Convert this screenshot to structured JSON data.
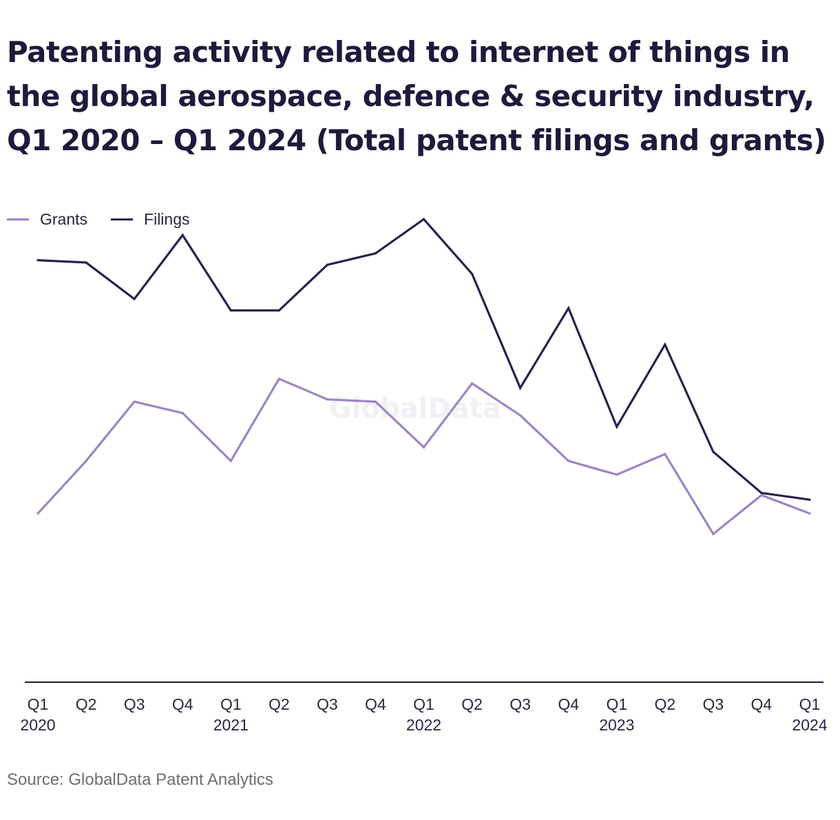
{
  "title": "Patenting activity related to internet of things in the global aerospace, defence & security industry, Q1 2020 – Q1 2024 (Total patent filings and grants)",
  "watermark": "GlobalData",
  "source": "Source: GlobalData Patent Analytics",
  "colors": {
    "grants": "#9b84c6",
    "filings": "#2b1f4e",
    "axis": "#1f1a3b"
  },
  "chart_data": {
    "type": "line",
    "title": "Patenting activity related to internet of things in the global aerospace, defence & security industry, Q1 2020 – Q1 2024 (Total patent filings and grants)",
    "xlabel": "",
    "ylabel": "",
    "grid": false,
    "legend_position": "top-left",
    "y_axis_labels_shown": false,
    "categories": [
      "Q1 2020",
      "Q2 2020",
      "Q3 2020",
      "Q4 2020",
      "Q1 2021",
      "Q2 2021",
      "Q3 2021",
      "Q4 2021",
      "Q1 2022",
      "Q2 2022",
      "Q3 2022",
      "Q4 2022",
      "Q1 2023",
      "Q2 2023",
      "Q3 2023",
      "Q4 2023",
      "Q1 2024"
    ],
    "tick_labels": [
      {
        "top": "Q1",
        "bottom": "2020"
      },
      {
        "top": "Q2",
        "bottom": ""
      },
      {
        "top": "Q3",
        "bottom": ""
      },
      {
        "top": "Q4",
        "bottom": ""
      },
      {
        "top": "Q1",
        "bottom": "2021"
      },
      {
        "top": "Q2",
        "bottom": ""
      },
      {
        "top": "Q3",
        "bottom": ""
      },
      {
        "top": "Q4",
        "bottom": ""
      },
      {
        "top": "Q1",
        "bottom": "2022"
      },
      {
        "top": "Q2",
        "bottom": ""
      },
      {
        "top": "Q3",
        "bottom": ""
      },
      {
        "top": "Q4",
        "bottom": ""
      },
      {
        "top": "Q1",
        "bottom": "2023"
      },
      {
        "top": "Q2",
        "bottom": ""
      },
      {
        "top": "Q3",
        "bottom": ""
      },
      {
        "top": "Q4",
        "bottom": ""
      },
      {
        "top": "Q1",
        "bottom": "2024"
      }
    ],
    "ylim": [
      0,
      200
    ],
    "series": [
      {
        "name": "Grants",
        "color": "#9b84c6",
        "values": [
          74,
          97,
          123,
          118,
          97,
          133,
          124,
          123,
          103,
          131,
          117,
          97,
          91,
          100,
          65,
          82,
          74
        ]
      },
      {
        "name": "Filings",
        "color": "#2b1f4e",
        "values": [
          185,
          184,
          168,
          196,
          163,
          163,
          183,
          188,
          203,
          179,
          129,
          164,
          112,
          148,
          101,
          83,
          80
        ]
      }
    ]
  }
}
